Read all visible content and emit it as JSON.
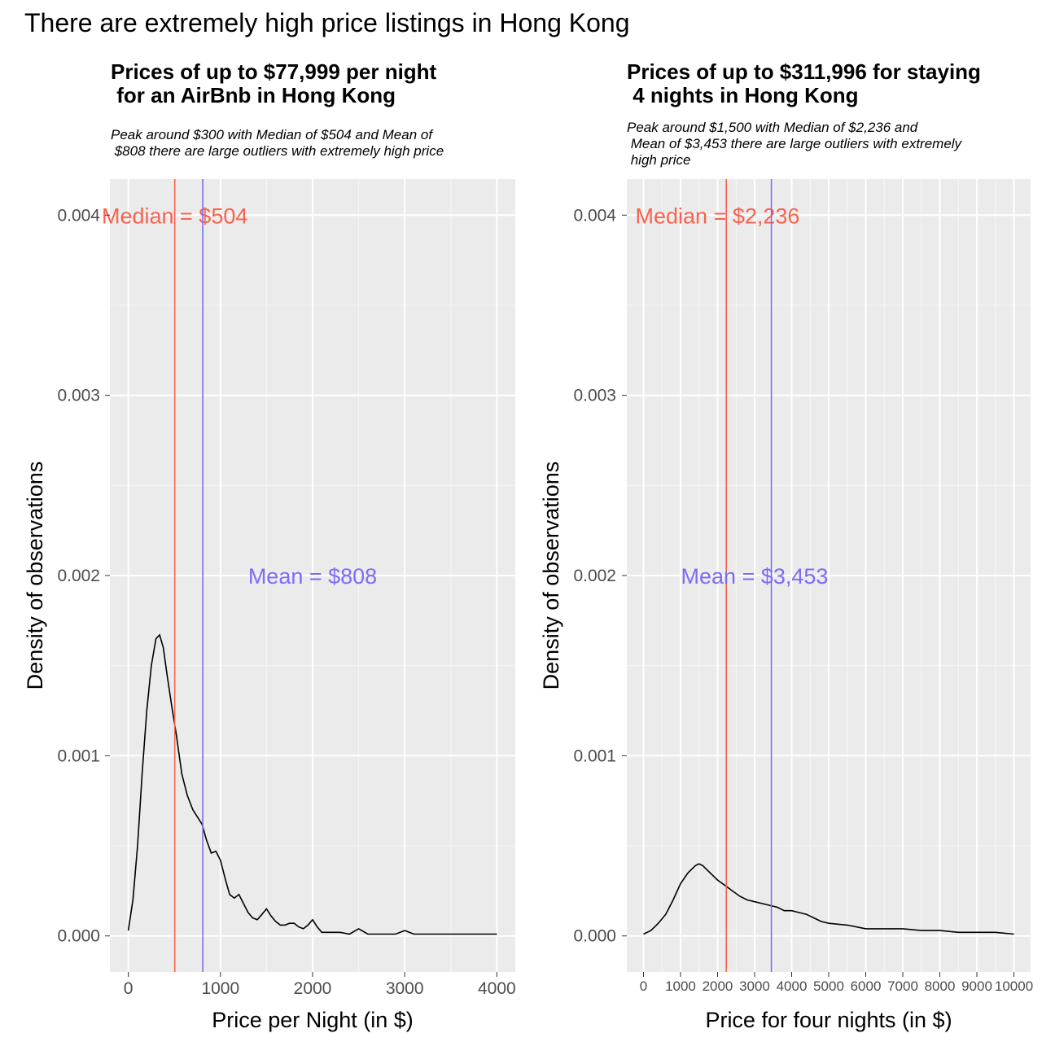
{
  "title": "There are extremely high price listings in Hong Kong",
  "chart_data": [
    {
      "type": "area",
      "title": "Prices of up to $77,999 per night\n for an AirBnb in Hong Kong",
      "subtitle": "Peak around $300 with Median of $504 and Mean of\n $808 there are large outliers with extremely high price",
      "xlabel": "Price per Night (in $)",
      "ylabel": "Density of observations",
      "xlim": [
        -200,
        4200
      ],
      "ylim": [
        -0.0002,
        0.0042
      ],
      "grid": true,
      "xticks": [
        0,
        1000,
        2000,
        3000,
        4000
      ],
      "xtick_labels": [
        "0",
        "1000",
        "2000",
        "3000",
        "4000"
      ],
      "yticks": [
        0,
        0.001,
        0.002,
        0.003,
        0.004
      ],
      "ytick_labels": [
        "0.000",
        "0.001",
        "0.002",
        "0.003",
        "0.004"
      ],
      "x": [
        0,
        50,
        100,
        150,
        200,
        250,
        300,
        340,
        380,
        420,
        470,
        520,
        580,
        640,
        700,
        750,
        800,
        850,
        900,
        950,
        1000,
        1050,
        1100,
        1150,
        1200,
        1250,
        1300,
        1350,
        1400,
        1450,
        1500,
        1550,
        1600,
        1650,
        1700,
        1750,
        1800,
        1850,
        1900,
        1950,
        2000,
        2050,
        2100,
        2200,
        2300,
        2400,
        2500,
        2600,
        2700,
        2800,
        2900,
        3000,
        3100,
        3200,
        3400,
        3600,
        3800,
        4000
      ],
      "y": [
        3e-05,
        0.0002,
        0.0005,
        0.0009,
        0.00125,
        0.0015,
        0.00165,
        0.00167,
        0.0016,
        0.00145,
        0.00128,
        0.00112,
        0.0009,
        0.00078,
        0.0007,
        0.00066,
        0.00062,
        0.00053,
        0.00046,
        0.00047,
        0.00042,
        0.00032,
        0.00023,
        0.00021,
        0.00023,
        0.00018,
        0.00013,
        0.0001,
        9e-05,
        0.00012,
        0.00015,
        0.00011,
        8e-05,
        6e-05,
        6e-05,
        7e-05,
        7e-05,
        5e-05,
        4e-05,
        6e-05,
        9e-05,
        5e-05,
        2e-05,
        2e-05,
        2e-05,
        1e-05,
        4e-05,
        1e-05,
        1e-05,
        1e-05,
        1e-05,
        3e-05,
        1e-05,
        1e-05,
        1e-05,
        1e-05,
        1e-05,
        1e-05
      ],
      "vlines": [
        {
          "x": 504,
          "color": "#f8624e",
          "label": "Median = $504",
          "label_x": 504,
          "label_y": 0.004
        },
        {
          "x": 808,
          "color": "#7b6cf6",
          "label": "Mean = $808",
          "label_x": 2000,
          "label_y": 0.002
        }
      ]
    },
    {
      "type": "area",
      "title": "Prices of up to $311,996 for staying\n 4 nights in Hong Kong",
      "subtitle": "Peak around $1,500 with Median of $2,236 and\n Mean of $3,453 there are large outliers with extremely\n high price",
      "xlabel": "Price for four nights (in $)",
      "ylabel": "Density of observations",
      "xlim": [
        -450,
        10450
      ],
      "ylim": [
        -0.0002,
        0.0042
      ],
      "grid": true,
      "xticks": [
        0,
        1000,
        2000,
        3000,
        4000,
        5000,
        6000,
        7000,
        8000,
        9000,
        10000
      ],
      "xtick_labels": [
        "0",
        "1000",
        "2000",
        "3000",
        "4000",
        "5000",
        "6000",
        "7000",
        "8000",
        "9000",
        "10000"
      ],
      "yticks": [
        0,
        0.001,
        0.002,
        0.003,
        0.004
      ],
      "ytick_labels": [
        "0.000",
        "0.001",
        "0.002",
        "0.003",
        "0.004"
      ],
      "x": [
        0,
        200,
        400,
        600,
        800,
        1000,
        1200,
        1400,
        1500,
        1600,
        1800,
        2000,
        2200,
        2400,
        2600,
        2800,
        3000,
        3200,
        3400,
        3600,
        3800,
        4000,
        4200,
        4400,
        4600,
        4800,
        5000,
        5500,
        6000,
        6500,
        7000,
        7500,
        8000,
        8500,
        9000,
        9500,
        10000
      ],
      "y": [
        1e-05,
        3e-05,
        7e-05,
        0.00012,
        0.0002,
        0.00029,
        0.00035,
        0.00039,
        0.0004,
        0.00039,
        0.00035,
        0.00031,
        0.00028,
        0.00025,
        0.00022,
        0.0002,
        0.00019,
        0.00018,
        0.00017,
        0.00016,
        0.00014,
        0.00014,
        0.00013,
        0.00012,
        0.0001,
        8e-05,
        7e-05,
        6e-05,
        4e-05,
        4e-05,
        4e-05,
        3e-05,
        3e-05,
        2e-05,
        2e-05,
        2e-05,
        1e-05
      ],
      "vlines": [
        {
          "x": 2236,
          "color": "#f8624e",
          "label": "Median = $2,236",
          "label_x": 2000,
          "label_y": 0.004
        },
        {
          "x": 3453,
          "color": "#7b6cf6",
          "label": "Mean = $3,453",
          "label_x": 3000,
          "label_y": 0.002
        }
      ]
    }
  ]
}
